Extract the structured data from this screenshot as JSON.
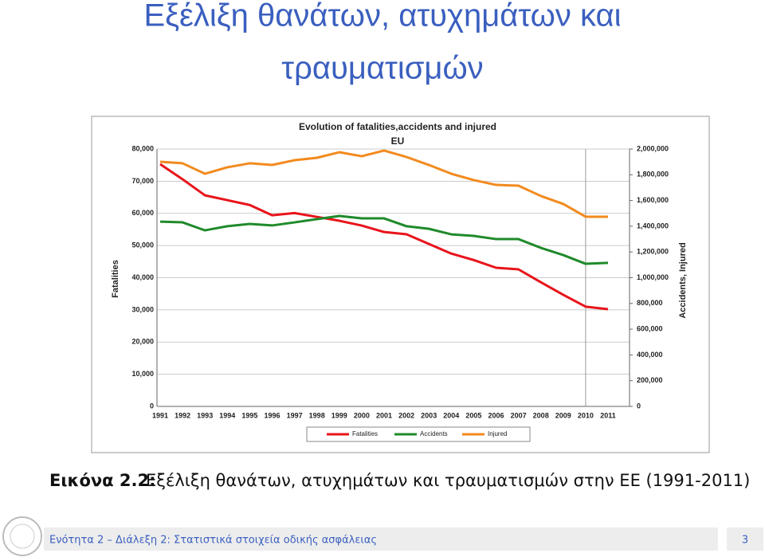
{
  "slide_title": [
    "Εξέλιξη θανάτων, ατυχημάτων και",
    "τραυματισμών"
  ],
  "caption": {
    "label": "Εικόνα 2.2:",
    "text": "Εξέλιξη θανάτων, ατυχημάτων και τραυματισμών στην ΕΕ (1991-2011)"
  },
  "footer": {
    "text": "Ενότητα 2 – Διάλεξη 2: Στατιστικά στοιχεία οδικής ασφάλειας",
    "page": "3"
  },
  "chart_data": {
    "type": "line",
    "title": "Evolution of fatalities,accidents and injured",
    "subtitle": "EU",
    "y_label": "Fatalities",
    "y2_label": "Accidents, Injured",
    "categories": [
      "1991",
      "1992",
      "1993",
      "1994",
      "1995",
      "1996",
      "1997",
      "1998",
      "1999",
      "2000",
      "2001",
      "2002",
      "2003",
      "2004",
      "2005",
      "2006",
      "2007",
      "2008",
      "2009",
      "2010",
      "2011"
    ],
    "ylim": [
      0,
      80000
    ],
    "yticks": [
      0,
      {
        "value": 10000,
        "label": "10,000"
      },
      {
        "value": 20000,
        "label": "20,000"
      },
      {
        "value": 30000,
        "label": "30,000"
      },
      {
        "value": 40000,
        "label": "40,000"
      },
      {
        "value": 50000,
        "label": "50,000"
      },
      {
        "value": 60000,
        "label": "60,000"
      },
      {
        "value": 70000,
        "label": "70,000"
      },
      {
        "value": 80000,
        "label": "80,000"
      }
    ],
    "y2lim": [
      0,
      2000000
    ],
    "y2ticks": [
      0,
      {
        "value": 200000,
        "label": "200,000"
      },
      {
        "value": 400000,
        "label": "400,000"
      },
      {
        "value": 600000,
        "label": "600,000"
      },
      {
        "value": 800000,
        "label": "800,000"
      },
      {
        "value": 1000000,
        "label": "1,000,000"
      },
      {
        "value": 1200000,
        "label": "1,200,000"
      },
      {
        "value": 1400000,
        "label": "1,400,000"
      },
      {
        "value": 1600000,
        "label": "1,600,000"
      },
      {
        "value": 1800000,
        "label": "1,800,000"
      },
      {
        "value": 2000000,
        "label": "2,000,000"
      }
    ],
    "grid": true,
    "series": [
      {
        "name": "Fatalities",
        "color": "#e8141b",
        "axis": "y",
        "values": [
          75300,
          70600,
          65600,
          64100,
          62600,
          59400,
          60100,
          58900,
          57700,
          56200,
          54200,
          53500,
          50500,
          47500,
          45500,
          43100,
          42600,
          38600,
          34700,
          31000,
          30200
        ]
      },
      {
        "name": "Accidents",
        "color": "#1f8a2a",
        "axis": "y2",
        "values": [
          1436000,
          1430000,
          1368000,
          1400000,
          1418000,
          1406000,
          1430000,
          1455000,
          1480000,
          1461000,
          1461000,
          1400000,
          1380000,
          1337000,
          1325000,
          1300000,
          1300000,
          1232000,
          1176000,
          1108000,
          1115000
        ]
      },
      {
        "name": "Injured",
        "color": "#f28a1e",
        "axis": "y2",
        "values": [
          1901000,
          1889000,
          1808000,
          1858000,
          1889000,
          1876000,
          1913000,
          1932000,
          1975000,
          1944000,
          1988000,
          1938000,
          1876000,
          1808000,
          1759000,
          1721000,
          1715000,
          1635000,
          1573000,
          1474000,
          1474000
        ]
      }
    ]
  }
}
